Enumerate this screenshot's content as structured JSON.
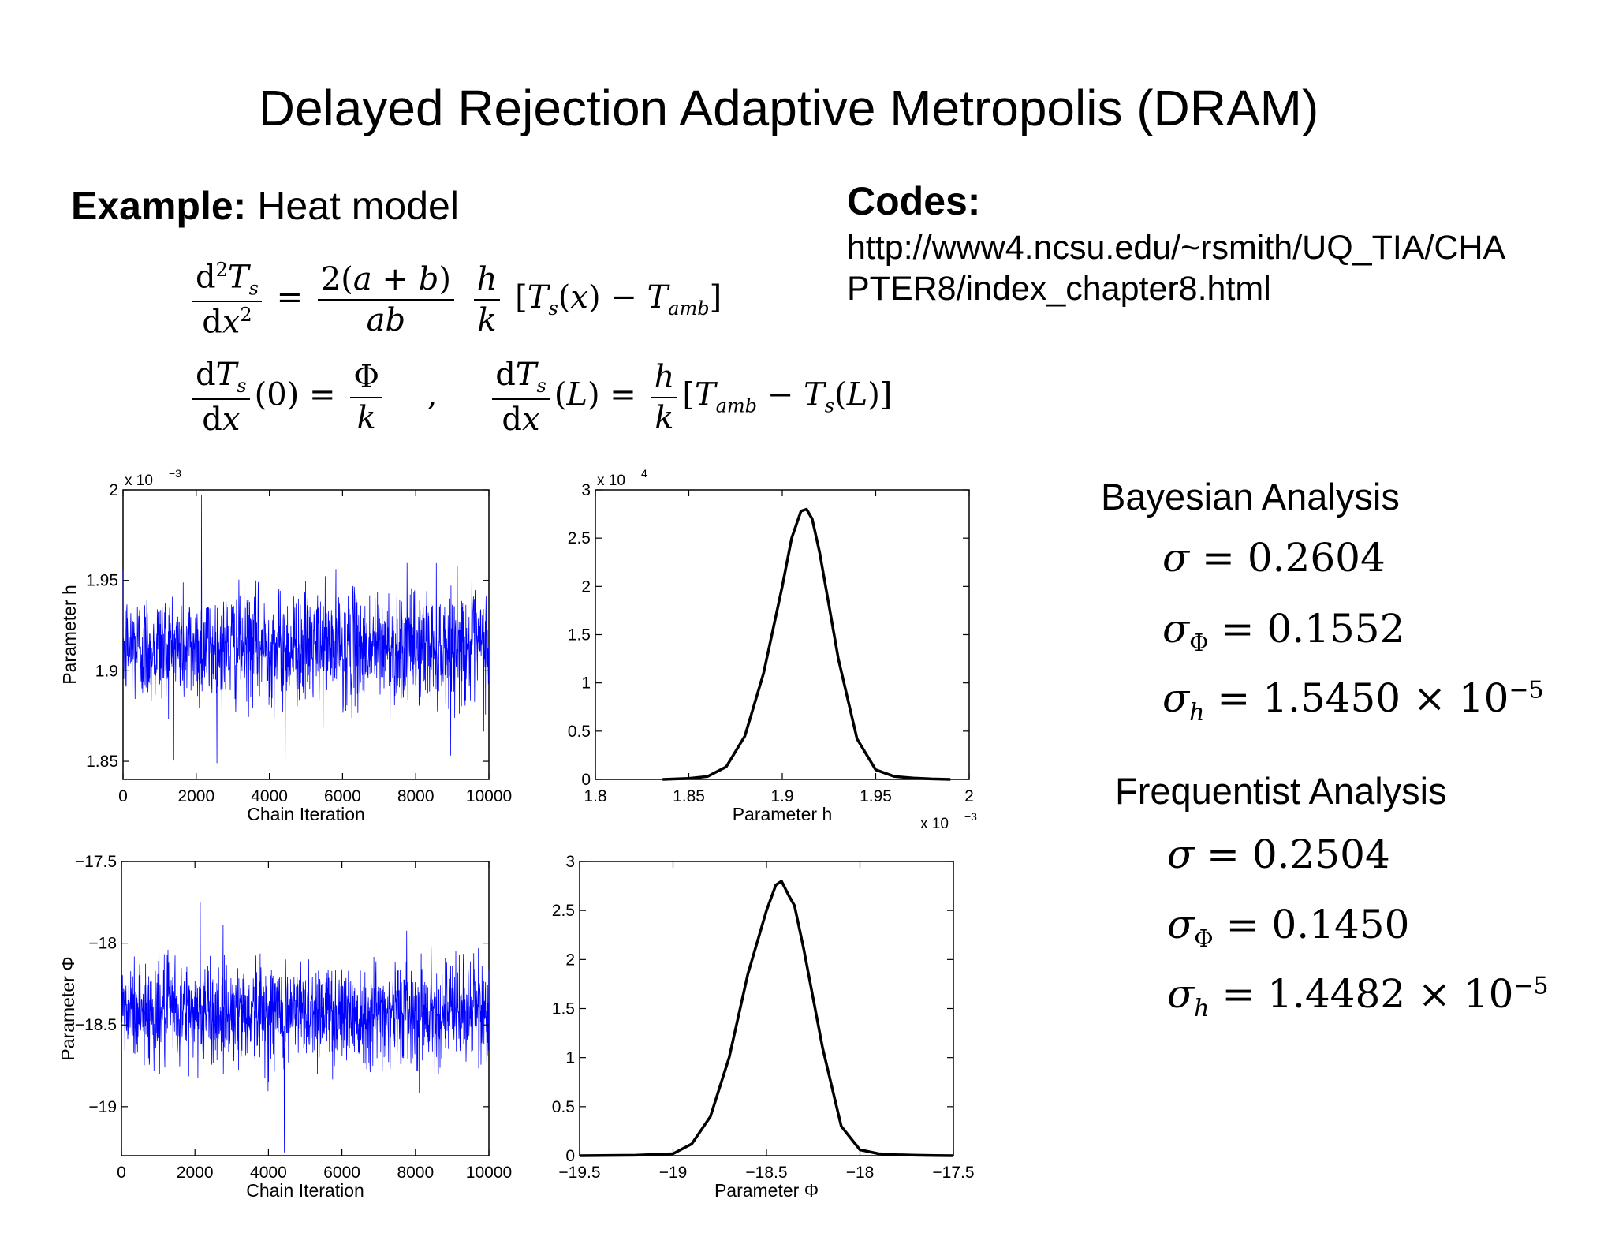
{
  "slide": {
    "title": "Delayed Rejection Adaptive Metropolis (DRAM)",
    "example_label": "Example:",
    "example_text": "Heat model",
    "codes_label": "Codes:",
    "codes_url_line1": "http://www4.ncsu.edu/~rsmith/UQ_TIA/CHA",
    "codes_url_line2": "PTER8/index_chapter8.html"
  },
  "stats": {
    "bayesian_label": "Bayesian Analysis",
    "bayesian": {
      "sigma": "0.2604",
      "sigma_phi": "0.1552",
      "sigma_h": "1.5450",
      "sigma_h_exp": "−5"
    },
    "frequentist_label": "Frequentist Analysis",
    "frequentist": {
      "sigma": "0.2504",
      "sigma_phi": "0.1450",
      "sigma_h": "1.4482",
      "sigma_h_exp": "−5"
    }
  },
  "chart_data": [
    {
      "id": "chain_h",
      "type": "line",
      "xlabel": "Chain Iteration",
      "ylabel": "Parameter h",
      "xlim": [
        0,
        10000
      ],
      "ylim": [
        1.84,
        2.0
      ],
      "xticks": [
        0,
        2000,
        4000,
        6000,
        8000,
        10000
      ],
      "xtick_labels": [
        "0",
        "2000",
        "4000",
        "6000",
        "8000",
        "10000"
      ],
      "yticks": [
        1.85,
        1.9,
        1.95,
        2.0
      ],
      "ytick_labels": [
        "1.85",
        "1.9",
        "1.95",
        "2"
      ],
      "y_multiplier": "x 10",
      "y_multiplier_exp": "−3",
      "series": [
        {
          "mean": 1.913,
          "std": 0.0155,
          "min": 1.849,
          "max": 1.997,
          "n": 10000,
          "color": "#0000ff"
        }
      ]
    },
    {
      "id": "density_h",
      "type": "line",
      "xlabel": "Parameter h",
      "ylabel": "",
      "xlim": [
        1.8,
        2.0
      ],
      "ylim": [
        0,
        30000
      ],
      "xticks": [
        1.8,
        1.85,
        1.9,
        1.95,
        2.0
      ],
      "xtick_labels": [
        "1.8",
        "1.85",
        "1.9",
        "1.95",
        "2"
      ],
      "yticks": [
        0,
        5000,
        10000,
        15000,
        20000,
        25000,
        30000
      ],
      "ytick_labels": [
        "0",
        "0.5",
        "1",
        "1.5",
        "2",
        "2.5",
        "3"
      ],
      "x_multiplier": "x 10",
      "x_multiplier_exp": "−3",
      "y_multiplier": "x 10",
      "y_multiplier_exp": "4",
      "x": [
        1.836,
        1.85,
        1.86,
        1.87,
        1.88,
        1.89,
        1.9,
        1.905,
        1.91,
        1.913,
        1.916,
        1.92,
        1.925,
        1.93,
        1.94,
        1.95,
        1.96,
        1.97,
        1.98,
        1.99
      ],
      "y": [
        0,
        100,
        300,
        1300,
        4500,
        11000,
        20000,
        25000,
        27800,
        28000,
        27000,
        23500,
        18000,
        12500,
        4200,
        1000,
        300,
        150,
        50,
        0
      ],
      "color": "#000000"
    },
    {
      "id": "chain_phi",
      "type": "line",
      "xlabel": "Chain Iteration",
      "ylabel": "Parameter Φ",
      "xlim": [
        0,
        10000
      ],
      "ylim": [
        -19.3,
        -17.5
      ],
      "xticks": [
        0,
        2000,
        4000,
        6000,
        8000,
        10000
      ],
      "xtick_labels": [
        "0",
        "2000",
        "4000",
        "6000",
        "8000",
        "10000"
      ],
      "yticks": [
        -17.5,
        -18,
        -18.5,
        -19
      ],
      "ytick_labels": [
        "−17.5",
        "−18",
        "−18.5",
        "−19"
      ],
      "series": [
        {
          "mean": -18.42,
          "std": 0.155,
          "min": -19.28,
          "max": -17.75,
          "n": 10000,
          "color": "#0000ff"
        }
      ]
    },
    {
      "id": "density_phi",
      "type": "line",
      "xlabel": "Parameter Φ",
      "ylabel": "",
      "xlim": [
        -19.5,
        -17.5
      ],
      "ylim": [
        0,
        3
      ],
      "xticks": [
        -19.5,
        -19,
        -18.5,
        -18,
        -17.5
      ],
      "xtick_labels": [
        "−19.5",
        "−19",
        "−18.5",
        "−18",
        "−17.5"
      ],
      "yticks": [
        0,
        0.5,
        1,
        1.5,
        2,
        2.5,
        3
      ],
      "ytick_labels": [
        "0",
        "0.5",
        "1",
        "1.5",
        "2",
        "2.5",
        "3"
      ],
      "x": [
        -19.5,
        -19.2,
        -19.0,
        -18.9,
        -18.8,
        -18.7,
        -18.6,
        -18.5,
        -18.45,
        -18.42,
        -18.38,
        -18.35,
        -18.3,
        -18.2,
        -18.1,
        -18.0,
        -17.9,
        -17.8,
        -17.7,
        -17.6,
        -17.5
      ],
      "y": [
        0,
        0.005,
        0.02,
        0.12,
        0.4,
        1.0,
        1.85,
        2.5,
        2.76,
        2.8,
        2.65,
        2.55,
        2.1,
        1.1,
        0.3,
        0.06,
        0.02,
        0.01,
        0.005,
        0.002,
        0
      ],
      "color": "#000000"
    }
  ]
}
